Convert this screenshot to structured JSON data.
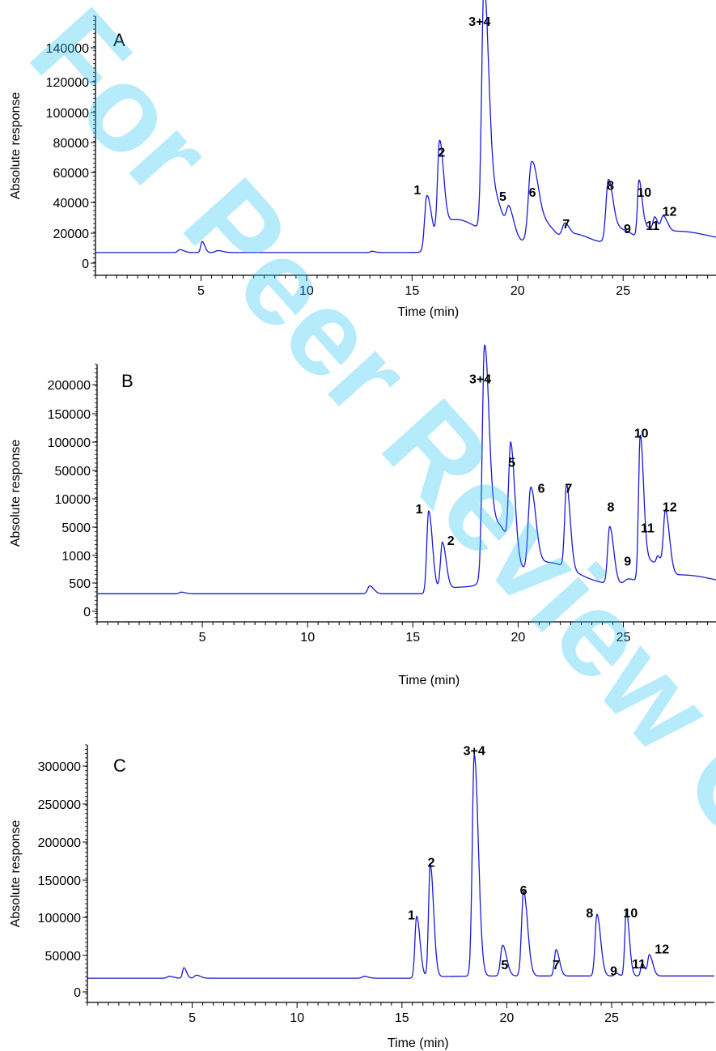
{
  "watermark": "For Peer Review Only",
  "colors": {
    "trace": "#1a1ad6",
    "watermark": "#22c3f3",
    "axis": "#000000"
  },
  "chart_data": [
    {
      "type": "line",
      "panel_label": "A",
      "xlabel": "Time (min)",
      "ylabel": "Absolute response",
      "xlim": [
        0,
        29.4
      ],
      "ylim": [
        0,
        150000
      ],
      "x_ticks": [
        5,
        10,
        15,
        20,
        25
      ],
      "y_tick_labels": [
        "0",
        "20000",
        "40000",
        "60000",
        "80000",
        "100000",
        "120000",
        "140000"
      ],
      "baseline": 5200,
      "tail": 6500,
      "peaks": [
        {
          "x": 4.0,
          "h": 1800,
          "w": 0.12
        },
        {
          "x": 5.05,
          "h": 7000,
          "w": 0.08
        },
        {
          "x": 5.8,
          "h": 1200,
          "w": 0.15
        },
        {
          "x": 13.1,
          "h": 800,
          "w": 0.1
        },
        {
          "x": 15.7,
          "h": 34000,
          "w": 0.13
        },
        {
          "x": 16.3,
          "h": 60000,
          "w": 0.12
        },
        {
          "x": 17.0,
          "h": 16000,
          "w": 0.7
        },
        {
          "x": 18.4,
          "h": 145000,
          "w": 0.13
        },
        {
          "x": 18.75,
          "h": 30000,
          "w": 0.3
        },
        {
          "x": 19.6,
          "h": 16000,
          "w": 0.15
        },
        {
          "x": 20.65,
          "h": 47000,
          "w": 0.17
        },
        {
          "x": 21.1,
          "h": 14000,
          "w": 0.35
        },
        {
          "x": 22.25,
          "h": 10500,
          "w": 0.16
        },
        {
          "x": 22.9,
          "h": 4500,
          "w": 0.3
        },
        {
          "x": 24.3,
          "h": 39000,
          "w": 0.14
        },
        {
          "x": 24.9,
          "h": 8000,
          "w": 0.35
        },
        {
          "x": 25.75,
          "h": 35000,
          "w": 0.09
        },
        {
          "x": 26.1,
          "h": 8000,
          "w": 0.25
        },
        {
          "x": 26.5,
          "h": 9000,
          "w": 0.1
        },
        {
          "x": 26.9,
          "h": 11000,
          "w": 0.13
        },
        {
          "x": 27.6,
          "h": 7000,
          "w": 0.9
        }
      ],
      "labels": [
        {
          "text": "1",
          "x": 15.25,
          "y": 42000
        },
        {
          "text": "2",
          "x": 16.4,
          "y": 66000
        },
        {
          "text": "3+4",
          "x": 18.2,
          "y": 149000
        },
        {
          "text": "5",
          "x": 19.3,
          "y": 38000
        },
        {
          "text": "6",
          "x": 20.7,
          "y": 40500
        },
        {
          "text": "7",
          "x": 22.3,
          "y": 20500
        },
        {
          "text": "8",
          "x": 24.4,
          "y": 45000
        },
        {
          "text": "9",
          "x": 25.2,
          "y": 17500
        },
        {
          "text": "10",
          "x": 26.0,
          "y": 40500
        },
        {
          "text": "11",
          "x": 26.4,
          "y": 19500
        },
        {
          "text": "12",
          "x": 27.2,
          "y": 28500
        }
      ]
    },
    {
      "type": "line",
      "panel_label": "B",
      "xlabel": "Time (min)",
      "ylabel": "Absolute response",
      "xlim": [
        0,
        29.4
      ],
      "ylim": [
        0,
        220000
      ],
      "x_ticks": [
        5,
        10,
        15,
        20,
        25
      ],
      "y_tick_labels": [
        "0",
        "500",
        "1000",
        "5000",
        "10000",
        "50000",
        "100000",
        "150000",
        "200000"
      ],
      "baseline": 13000,
      "tail": 8000,
      "peaks": [
        {
          "x": 4.0,
          "h": 1500,
          "w": 0.12
        },
        {
          "x": 12.95,
          "h": 7500,
          "w": 0.12
        },
        {
          "x": 15.75,
          "h": 78000,
          "w": 0.11
        },
        {
          "x": 16.4,
          "h": 45000,
          "w": 0.11
        },
        {
          "x": 18.4,
          "h": 212000,
          "w": 0.13
        },
        {
          "x": 18.95,
          "h": 60000,
          "w": 0.45
        },
        {
          "x": 19.65,
          "h": 100000,
          "w": 0.12
        },
        {
          "x": 20.6,
          "h": 80000,
          "w": 0.15
        },
        {
          "x": 21.4,
          "h": 22000,
          "w": 0.8
        },
        {
          "x": 22.3,
          "h": 80000,
          "w": 0.11
        },
        {
          "x": 24.35,
          "h": 55000,
          "w": 0.12
        },
        {
          "x": 25.25,
          "h": 6000,
          "w": 0.25
        },
        {
          "x": 25.8,
          "h": 138000,
          "w": 0.1
        },
        {
          "x": 26.25,
          "h": 22000,
          "w": 0.3
        },
        {
          "x": 26.65,
          "h": 10000,
          "w": 0.1
        },
        {
          "x": 27.0,
          "h": 60000,
          "w": 0.12
        },
        {
          "x": 27.8,
          "h": 10000,
          "w": 0.9
        }
      ],
      "labels": [
        {
          "text": "1",
          "x": 15.3,
          "y": 90000
        },
        {
          "text": "2",
          "x": 16.8,
          "y": 60000
        },
        {
          "text": "3+4",
          "x": 18.2,
          "y": 215000
        },
        {
          "text": "5",
          "x": 19.7,
          "y": 135000
        },
        {
          "text": "6",
          "x": 21.1,
          "y": 110000
        },
        {
          "text": "7",
          "x": 22.4,
          "y": 110000
        },
        {
          "text": "8",
          "x": 24.4,
          "y": 92000
        },
        {
          "text": "9",
          "x": 25.2,
          "y": 40000
        },
        {
          "text": "10",
          "x": 25.85,
          "y": 163000
        },
        {
          "text": "11",
          "x": 26.15,
          "y": 72000
        },
        {
          "text": "12",
          "x": 27.2,
          "y": 92000
        }
      ]
    },
    {
      "type": "line",
      "panel_label": "C",
      "xlabel": "Time (min)",
      "ylabel": "Absolute response",
      "xlim": [
        0,
        29.9
      ],
      "ylim": [
        0,
        320000
      ],
      "x_ticks": [
        5,
        10,
        15,
        20,
        25
      ],
      "y_tick_labels": [
        "0",
        "50000",
        "100000",
        "150000",
        "200000",
        "250000",
        "300000"
      ],
      "baseline": 15000,
      "tail": 3000,
      "peaks": [
        {
          "x": 3.9,
          "h": 2500,
          "w": 0.12
        },
        {
          "x": 4.6,
          "h": 14000,
          "w": 0.08
        },
        {
          "x": 5.2,
          "h": 4000,
          "w": 0.12
        },
        {
          "x": 13.2,
          "h": 2500,
          "w": 0.12
        },
        {
          "x": 15.7,
          "h": 82000,
          "w": 0.1
        },
        {
          "x": 16.35,
          "h": 150000,
          "w": 0.1
        },
        {
          "x": 18.45,
          "h": 295000,
          "w": 0.12
        },
        {
          "x": 19.8,
          "h": 41000,
          "w": 0.12
        },
        {
          "x": 20.8,
          "h": 113000,
          "w": 0.12
        },
        {
          "x": 22.35,
          "h": 35000,
          "w": 0.1
        },
        {
          "x": 24.3,
          "h": 82000,
          "w": 0.11
        },
        {
          "x": 25.2,
          "h": 4000,
          "w": 0.08
        },
        {
          "x": 25.7,
          "h": 87000,
          "w": 0.09
        },
        {
          "x": 26.45,
          "h": 17000,
          "w": 0.08
        },
        {
          "x": 26.8,
          "h": 28000,
          "w": 0.1
        }
      ],
      "labels": [
        {
          "text": "1",
          "x": 15.45,
          "y": 93000
        },
        {
          "text": "2",
          "x": 16.4,
          "y": 163000
        },
        {
          "text": "3+4",
          "x": 18.45,
          "y": 312000
        },
        {
          "text": "5",
          "x": 19.9,
          "y": 27000
        },
        {
          "text": "6",
          "x": 20.8,
          "y": 126000
        },
        {
          "text": "7",
          "x": 22.35,
          "y": 27000
        },
        {
          "text": "8",
          "x": 23.95,
          "y": 96000
        },
        {
          "text": "9",
          "x": 25.1,
          "y": 19000
        },
        {
          "text": "10",
          "x": 25.9,
          "y": 96000
        },
        {
          "text": "11",
          "x": 26.3,
          "y": 28000
        },
        {
          "text": "12",
          "x": 27.4,
          "y": 48000
        }
      ]
    }
  ]
}
